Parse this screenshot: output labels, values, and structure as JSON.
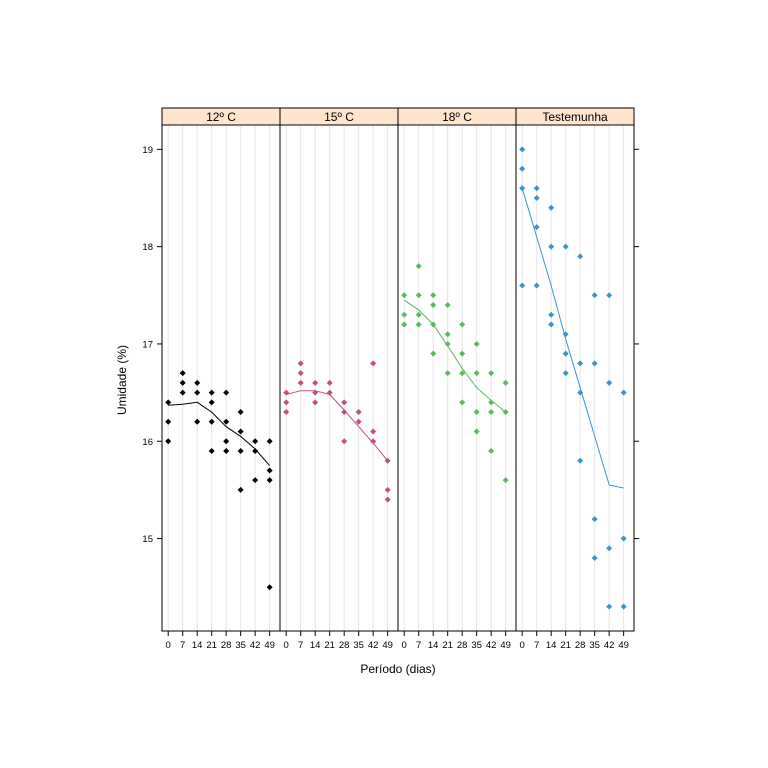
{
  "chart_data": {
    "type": "scatter",
    "xlabel": "Período (dias)",
    "ylabel": "Umidade (%)",
    "x_ticks": [
      0,
      7,
      14,
      21,
      28,
      35,
      42,
      49
    ],
    "y_ticks": [
      15,
      16,
      17,
      18,
      19
    ],
    "xlim": [
      -3,
      54
    ],
    "ylim": [
      14.05,
      19.25
    ],
    "grid": "vertical",
    "strip_color": "#ffe5cc",
    "panels": [
      {
        "name": "12º C",
        "color": "#000000",
        "points": [
          [
            0,
            16.4
          ],
          [
            0,
            16.2
          ],
          [
            0,
            16.0
          ],
          [
            7,
            16.7
          ],
          [
            7,
            16.6
          ],
          [
            7,
            16.5
          ],
          [
            14,
            16.6
          ],
          [
            14,
            16.5
          ],
          [
            14,
            16.2
          ],
          [
            21,
            16.5
          ],
          [
            21,
            16.4
          ],
          [
            21,
            16.2
          ],
          [
            21,
            15.9
          ],
          [
            28,
            16.5
          ],
          [
            28,
            16.2
          ],
          [
            28,
            16.0
          ],
          [
            28,
            15.9
          ],
          [
            35,
            16.3
          ],
          [
            35,
            16.1
          ],
          [
            35,
            15.9
          ],
          [
            35,
            15.5
          ],
          [
            42,
            16.0
          ],
          [
            42,
            15.9
          ],
          [
            42,
            15.6
          ],
          [
            49,
            16.0
          ],
          [
            49,
            15.7
          ],
          [
            49,
            15.6
          ],
          [
            49,
            14.5
          ]
        ],
        "smooth": [
          [
            0,
            16.37
          ],
          [
            7,
            16.38
          ],
          [
            14,
            16.4
          ],
          [
            21,
            16.3
          ],
          [
            28,
            16.15
          ],
          [
            35,
            16.05
          ],
          [
            42,
            15.92
          ],
          [
            49,
            15.75
          ]
        ]
      },
      {
        "name": "15º C",
        "color": "#c4526f",
        "points": [
          [
            0,
            16.5
          ],
          [
            0,
            16.4
          ],
          [
            0,
            16.3
          ],
          [
            7,
            16.8
          ],
          [
            7,
            16.7
          ],
          [
            7,
            16.6
          ],
          [
            14,
            16.6
          ],
          [
            14,
            16.5
          ],
          [
            14,
            16.4
          ],
          [
            21,
            16.6
          ],
          [
            21,
            16.5
          ],
          [
            28,
            16.4
          ],
          [
            28,
            16.3
          ],
          [
            28,
            16.0
          ],
          [
            35,
            16.3
          ],
          [
            35,
            16.2
          ],
          [
            42,
            16.8
          ],
          [
            42,
            16.1
          ],
          [
            42,
            16.0
          ],
          [
            49,
            15.8
          ],
          [
            49,
            15.5
          ],
          [
            49,
            15.4
          ]
        ],
        "smooth": [
          [
            0,
            16.48
          ],
          [
            7,
            16.52
          ],
          [
            14,
            16.52
          ],
          [
            21,
            16.48
          ],
          [
            28,
            16.32
          ],
          [
            35,
            16.15
          ],
          [
            42,
            15.98
          ],
          [
            49,
            15.8
          ]
        ]
      },
      {
        "name": "18º C",
        "color": "#5cb85c",
        "points": [
          [
            0,
            17.5
          ],
          [
            0,
            17.3
          ],
          [
            0,
            17.2
          ],
          [
            7,
            17.8
          ],
          [
            7,
            17.5
          ],
          [
            7,
            17.3
          ],
          [
            7,
            17.2
          ],
          [
            14,
            17.5
          ],
          [
            14,
            17.4
          ],
          [
            14,
            17.2
          ],
          [
            14,
            16.9
          ],
          [
            21,
            17.4
          ],
          [
            21,
            17.1
          ],
          [
            21,
            17.0
          ],
          [
            21,
            16.7
          ],
          [
            28,
            17.2
          ],
          [
            28,
            16.9
          ],
          [
            28,
            16.7
          ],
          [
            28,
            16.4
          ],
          [
            35,
            17.0
          ],
          [
            35,
            16.7
          ],
          [
            35,
            16.3
          ],
          [
            35,
            16.1
          ],
          [
            42,
            16.7
          ],
          [
            42,
            16.4
          ],
          [
            42,
            16.3
          ],
          [
            42,
            15.9
          ],
          [
            49,
            16.6
          ],
          [
            49,
            16.3
          ],
          [
            49,
            15.6
          ]
        ],
        "smooth": [
          [
            0,
            17.45
          ],
          [
            7,
            17.35
          ],
          [
            14,
            17.2
          ],
          [
            21,
            16.98
          ],
          [
            28,
            16.75
          ],
          [
            35,
            16.55
          ],
          [
            42,
            16.42
          ],
          [
            49,
            16.3
          ]
        ]
      },
      {
        "name": "Testemunha",
        "color": "#3e94c8",
        "points": [
          [
            0,
            19.0
          ],
          [
            0,
            18.8
          ],
          [
            0,
            18.6
          ],
          [
            0,
            17.6
          ],
          [
            7,
            18.6
          ],
          [
            7,
            18.5
          ],
          [
            7,
            18.2
          ],
          [
            7,
            17.6
          ],
          [
            14,
            18.4
          ],
          [
            14,
            18.0
          ],
          [
            14,
            17.3
          ],
          [
            14,
            17.2
          ],
          [
            21,
            18.0
          ],
          [
            21,
            17.1
          ],
          [
            21,
            16.9
          ],
          [
            21,
            16.7
          ],
          [
            28,
            17.9
          ],
          [
            28,
            16.8
          ],
          [
            28,
            16.5
          ],
          [
            28,
            15.8
          ],
          [
            35,
            17.5
          ],
          [
            35,
            16.8
          ],
          [
            35,
            15.2
          ],
          [
            35,
            14.8
          ],
          [
            42,
            17.5
          ],
          [
            42,
            16.6
          ],
          [
            42,
            14.9
          ],
          [
            42,
            14.3
          ],
          [
            49,
            16.5
          ],
          [
            49,
            15.0
          ],
          [
            49,
            14.3
          ]
        ],
        "smooth": [
          [
            0,
            18.6
          ],
          [
            7,
            18.1
          ],
          [
            14,
            17.6
          ],
          [
            21,
            17.05
          ],
          [
            28,
            16.55
          ],
          [
            35,
            16.05
          ],
          [
            42,
            15.55
          ],
          [
            49,
            15.52
          ]
        ]
      }
    ]
  }
}
